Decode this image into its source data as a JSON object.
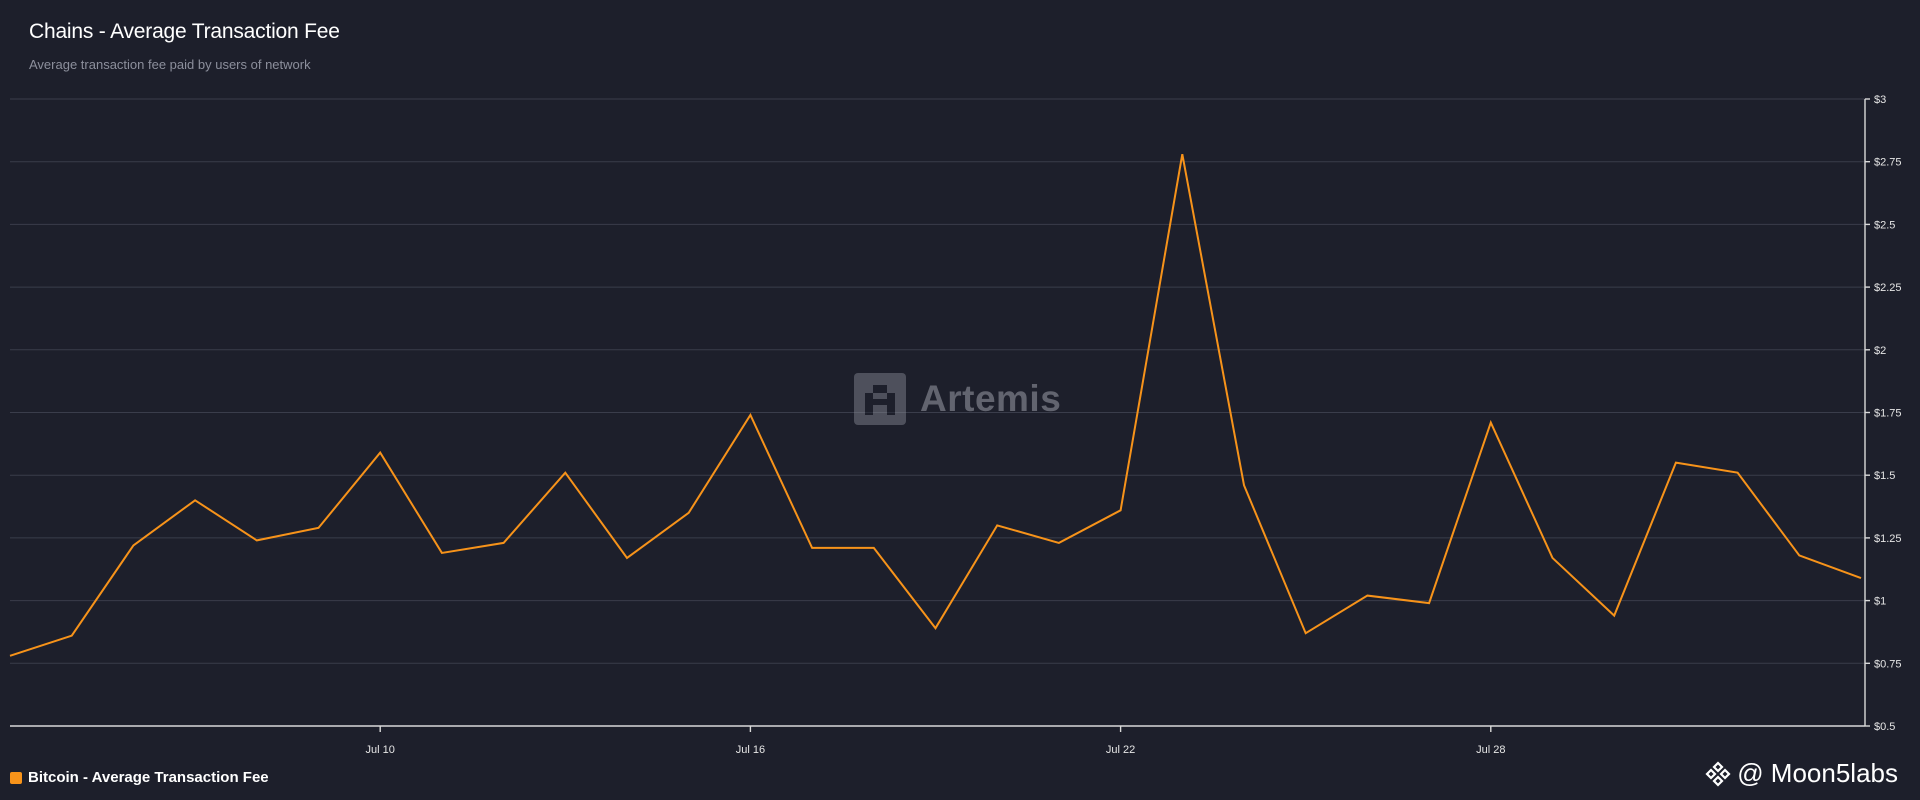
{
  "header": {
    "title": "Chains - Average Transaction Fee",
    "subtitle": "Average transaction fee paid by users of network"
  },
  "watermark": {
    "text": "Artemis",
    "icon": "artemis-logo-icon"
  },
  "credit": {
    "text": "@ Moon5labs",
    "icon": "binance-logo-icon"
  },
  "legend": {
    "label": "Bitcoin - Average Transaction Fee"
  },
  "colors": {
    "series": "#f7931a",
    "background": "#1d1f2b"
  },
  "chart_data": {
    "type": "line",
    "title": "Chains - Average Transaction Fee",
    "subtitle": "Average transaction fee paid by users of network",
    "xlabel": "",
    "ylabel": "",
    "x": [
      "Jul 4",
      "Jul 5",
      "Jul 6",
      "Jul 7",
      "Jul 8",
      "Jul 9",
      "Jul 10",
      "Jul 11",
      "Jul 12",
      "Jul 13",
      "Jul 14",
      "Jul 15",
      "Jul 16",
      "Jul 17",
      "Jul 18",
      "Jul 19",
      "Jul 20",
      "Jul 21",
      "Jul 22",
      "Jul 23",
      "Jul 24",
      "Jul 25",
      "Jul 26",
      "Jul 27",
      "Jul 28",
      "Jul 29",
      "Jul 30",
      "Jul 31",
      "Aug 1",
      "Aug 2",
      "Aug 3"
    ],
    "series": [
      {
        "name": "Bitcoin - Average Transaction Fee",
        "values": [
          0.78,
          0.86,
          1.22,
          1.4,
          1.24,
          1.29,
          1.59,
          1.19,
          1.23,
          1.51,
          1.17,
          1.35,
          1.74,
          1.21,
          1.21,
          0.89,
          1.3,
          1.23,
          1.36,
          2.78,
          1.46,
          0.87,
          1.02,
          0.99,
          1.71,
          1.17,
          0.94,
          1.55,
          1.51,
          1.18,
          1.09
        ]
      }
    ],
    "x_ticks": [
      "Jul 10",
      "Jul 16",
      "Jul 22",
      "Jul 28"
    ],
    "y_ticks": [
      "$0.5",
      "$0.75",
      "$1",
      "$1.25",
      "$1.5",
      "$1.75",
      "$2",
      "$2.25",
      "$2.5",
      "$2.75",
      "$3"
    ],
    "y_tick_values": [
      0.5,
      0.75,
      1,
      1.25,
      1.5,
      1.75,
      2,
      2.25,
      2.5,
      2.75,
      3
    ],
    "ylim": [
      0.5,
      3
    ],
    "grid": true,
    "y_axis_side": "right",
    "legend_position": "bottom-left"
  }
}
